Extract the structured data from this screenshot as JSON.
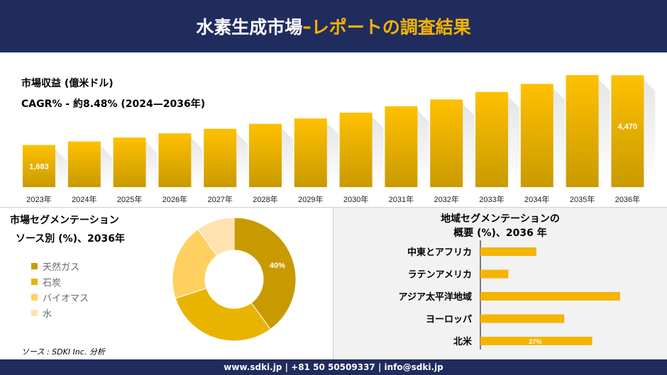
{
  "header": {
    "title_main": "水素生成市場",
    "title_dash": "–",
    "title_accent": "レポートの調査結果"
  },
  "colors": {
    "navy": "#202c5e",
    "accent": "#f5b400",
    "bar_dark": "#c99a00",
    "bar_light": "#ffc000"
  },
  "revenue": {
    "title": "市場収益 (億米ドル)",
    "cagr": "CAGR% - 約8.48% (2024—2036年)"
  },
  "chart_data": [
    {
      "type": "bar",
      "categories": [
        "2023年",
        "2024年",
        "2025年",
        "2026年",
        "2027年",
        "2028年",
        "2029年",
        "2030年",
        "2031年",
        "2032年",
        "2033年",
        "2034年",
        "2035年",
        "2036年"
      ],
      "values": [
        1683,
        1826,
        1981,
        2149,
        2331,
        2529,
        2744,
        2977,
        3229,
        3504,
        3801,
        4124,
        4474,
        4470
      ],
      "data_labels": {
        "0": "1,683",
        "13": "4,470"
      }
    },
    {
      "type": "pie",
      "title": "市場セグメンテーション\nソース別 (%)、2036年",
      "labels": [
        "天然ガス",
        "石炭",
        "バイオマス",
        "水"
      ],
      "values": [
        40,
        30,
        20,
        10
      ],
      "data_labels": {
        "0": "40%"
      },
      "colors": [
        "#c99a00",
        "#e8b400",
        "#ffd060",
        "#ffe2b0"
      ]
    },
    {
      "type": "bar",
      "orientation": "horizontal",
      "title": "地域セグメンテーションの\n概要 (%)、2036 年",
      "categories": [
        "中東とアフリカ",
        "ラテンアメリカ",
        "アジア太平洋地域",
        "ヨーロッパ",
        "北米"
      ],
      "values": [
        10,
        5,
        25,
        15,
        20
      ],
      "data_labels": {
        "4": "27%"
      }
    }
  ],
  "segment_left": {
    "title_line1": "市場セグメンテーション",
    "title_line2": "ソース別 (%)、2036年"
  },
  "segment_right": {
    "title_line1": "地域セグメンテーションの",
    "title_line2": "概要 (%)、2036 年"
  },
  "source": "ソース : SDKI Inc. 分析",
  "footer": "www.sdki.jp | +81 50 50509337 | info@sdki.jp"
}
